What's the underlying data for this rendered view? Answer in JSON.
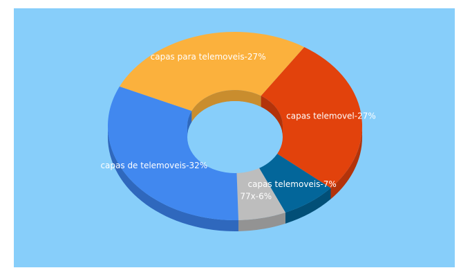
{
  "colors": {
    "background": "#ffffff",
    "panel": "#87cefa"
  },
  "chart_data": {
    "type": "pie",
    "variant": "3d-donut",
    "slices": [
      {
        "label": "capas telemovel-27%",
        "value": 27,
        "color": "#e2420c",
        "side": "#b3330a"
      },
      {
        "label": "capas telemoveis-7%",
        "value": 7,
        "color": "#03669a",
        "side": "#024f77"
      },
      {
        "label": "77x-6%",
        "value": 6,
        "color": "#bdbdbd",
        "side": "#939393"
      },
      {
        "label": "capas de telemoveis-32%",
        "value": 32,
        "color": "#4188ef",
        "side": "#2f68bd"
      },
      {
        "label": "capas para telemoveis-27%",
        "value": 27,
        "color": "#fbb13d",
        "side": "#c98d2e"
      }
    ]
  }
}
